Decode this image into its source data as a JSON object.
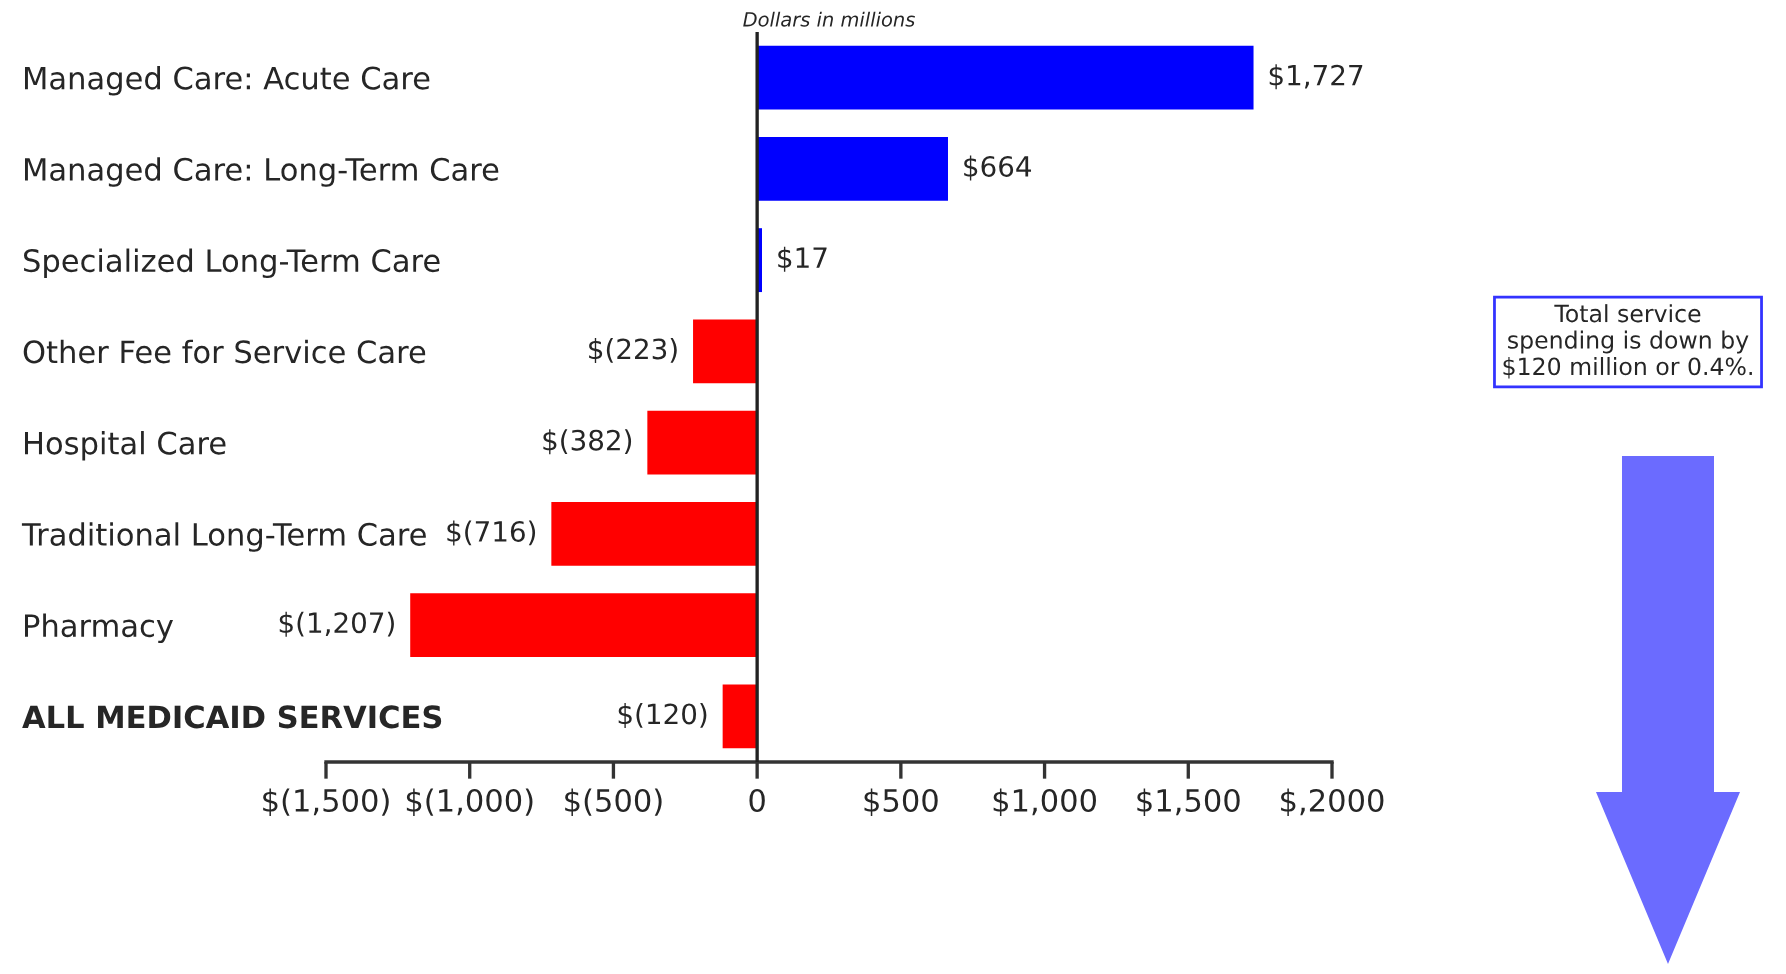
{
  "chart_data": {
    "type": "bar",
    "orientation": "horizontal",
    "xlabel": "Dollars in millions",
    "categories": [
      "Managed Care: Acute Care",
      "Managed Care: Long-Term Care",
      "Specialized Long-Term Care",
      "Other Fee for Service Care",
      "Hospital Care",
      "Traditional Long-Term Care",
      "Pharmacy",
      "ALL MEDICAID SERVICES"
    ],
    "values": [
      1727,
      664,
      17,
      -223,
      -382,
      -716,
      -1207,
      -120
    ],
    "colors": [
      "#0000ff",
      "#0000ff",
      "#0000ff",
      "#ff0000",
      "#ff0000",
      "#ff0000",
      "#ff0000",
      "#ff0000"
    ],
    "value_labels": [
      "$1,727",
      "$664",
      "$17",
      "$(223)",
      "$(382)",
      "$(716)",
      "$(1,207)",
      "$(120)"
    ],
    "xlim": [
      -1500,
      2000
    ],
    "xticks": [
      {
        "value": -1500,
        "label": "$(1,500)"
      },
      {
        "value": -1000,
        "label": "$(1,000)"
      },
      {
        "value": -500,
        "label": "$(500)"
      },
      0,
      {
        "value": 500,
        "label": "$500"
      },
      {
        "value": 1000,
        "label": "$1,000"
      },
      {
        "value": 1500,
        "label": "$1,500"
      },
      {
        "value": 2000,
        "label": "$,2000"
      }
    ],
    "ref_lines": [
      {
        "axis": "x",
        "value": 0,
        "color": "#222222"
      }
    ],
    "annotations": [
      "Total service\nspending is down by\n$120 million or 0.4%."
    ],
    "grid": false,
    "legend": false
  }
}
